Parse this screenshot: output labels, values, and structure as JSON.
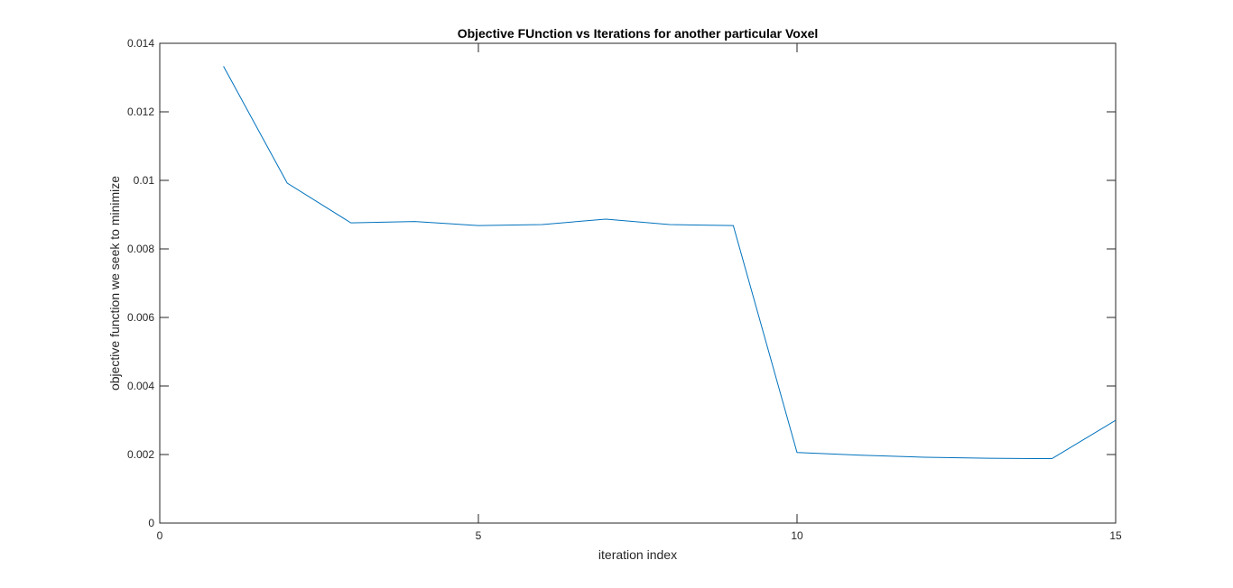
{
  "chart_data": {
    "type": "line",
    "title": "Objective FUnction vs Iterations for another particular Voxel",
    "xlabel": "iteration index",
    "ylabel": "objective function we seek to minimize",
    "xlim": [
      0,
      15
    ],
    "ylim": [
      0,
      0.014
    ],
    "x_ticks": [
      0,
      5,
      10,
      15
    ],
    "x_tick_labels": [
      "0",
      "5",
      "10",
      "15"
    ],
    "y_ticks": [
      0,
      0.002,
      0.004,
      0.006,
      0.008,
      0.01,
      0.012,
      0.014
    ],
    "y_tick_labels": [
      "0",
      "0.002",
      "0.004",
      "0.006",
      "0.008",
      "0.01",
      "0.012",
      "0.014"
    ],
    "grid": false,
    "box": true,
    "series": [
      {
        "color": "#0072bd",
        "x": [
          1,
          2,
          3,
          4,
          5,
          6,
          7,
          8,
          9,
          10,
          11,
          12,
          13,
          14,
          15
        ],
        "y": [
          0.01333,
          0.00992,
          0.00876,
          0.0088,
          0.00868,
          0.00871,
          0.00887,
          0.00871,
          0.00868,
          0.00206,
          0.00198,
          0.00192,
          0.00189,
          0.00188,
          0.003
        ]
      }
    ]
  },
  "colors": {
    "axes": "#262626",
    "line": "#0072bd",
    "background": "#ffffff"
  }
}
